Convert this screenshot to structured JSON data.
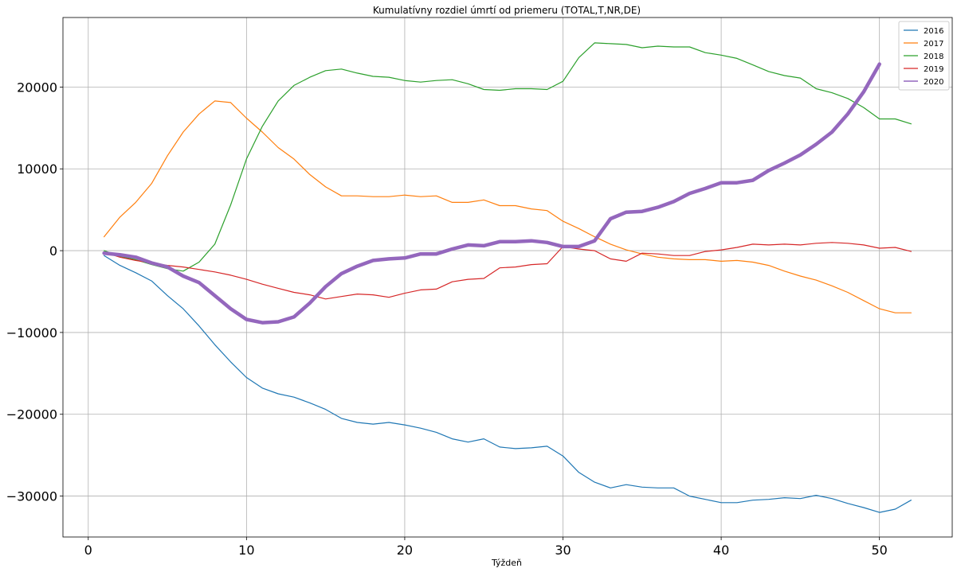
{
  "chart_data": {
    "type": "line",
    "title": "Kumulatívny rozdiel úmrtí od priemeru (TOTAL,T,NR,DE)",
    "xlabel": "Týždeň",
    "ylabel": "",
    "xlim": [
      -1.6,
      54.6
    ],
    "ylim": [
      -35000,
      28500
    ],
    "xticks": [
      0,
      10,
      20,
      30,
      40,
      50
    ],
    "yticks": [
      -30000,
      -20000,
      -10000,
      0,
      10000,
      20000
    ],
    "xtick_labels": [
      "0",
      "10",
      "20",
      "30",
      "40",
      "50"
    ],
    "ytick_labels": [
      "−30000",
      "−20000",
      "−10000",
      "0",
      "10000",
      "20000"
    ],
    "grid": true,
    "legend_position": "top-right",
    "series": [
      {
        "name": "2016",
        "color": "#1f77b4",
        "width": 1.2,
        "x": [
          1,
          2,
          3,
          4,
          5,
          6,
          7,
          8,
          9,
          10,
          11,
          12,
          13,
          14,
          15,
          16,
          17,
          18,
          19,
          20,
          21,
          22,
          23,
          24,
          25,
          26,
          27,
          28,
          29,
          30,
          31,
          32,
          33,
          34,
          35,
          36,
          37,
          38,
          39,
          40,
          41,
          42,
          43,
          44,
          45,
          46,
          47,
          48,
          49,
          50,
          51,
          52
        ],
        "y": [
          -600,
          -1800,
          -2700,
          -3700,
          -5500,
          -7100,
          -9200,
          -11500,
          -13600,
          -15500,
          -16800,
          -17500,
          -17900,
          -18600,
          -19400,
          -20500,
          -21000,
          -21200,
          -21000,
          -21300,
          -21700,
          -22200,
          -23000,
          -23400,
          -23000,
          -24000,
          -24200,
          -24100,
          -23900,
          -25100,
          -27100,
          -28300,
          -29000,
          -28600,
          -28900,
          -29000,
          -29000,
          -30000,
          -30400,
          -30800,
          -30800,
          -30500,
          -30400,
          -30200,
          -30300,
          -29900,
          -30300,
          -30900,
          -31400,
          -32000,
          -31600,
          -30500
        ]
      },
      {
        "name": "2017",
        "color": "#ff7f0e",
        "width": 1.2,
        "x": [
          1,
          2,
          3,
          4,
          5,
          6,
          7,
          8,
          9,
          10,
          11,
          12,
          13,
          14,
          15,
          16,
          17,
          18,
          19,
          20,
          21,
          22,
          23,
          24,
          25,
          26,
          27,
          28,
          29,
          30,
          31,
          32,
          33,
          34,
          35,
          36,
          37,
          38,
          39,
          40,
          41,
          42,
          43,
          44,
          45,
          46,
          47,
          48,
          49,
          50,
          51,
          52
        ],
        "y": [
          1700,
          4100,
          5900,
          8200,
          11600,
          14500,
          16700,
          18300,
          18100,
          16200,
          14500,
          12600,
          11200,
          9300,
          7800,
          6700,
          6700,
          6600,
          6600,
          6800,
          6600,
          6700,
          5900,
          5900,
          6200,
          5500,
          5500,
          5100,
          4900,
          3600,
          2700,
          1700,
          800,
          100,
          -400,
          -800,
          -1000,
          -1100,
          -1100,
          -1300,
          -1200,
          -1400,
          -1800,
          -2500,
          -3100,
          -3600,
          -4300,
          -5100,
          -6100,
          -7100,
          -7600,
          -7600
        ]
      },
      {
        "name": "2018",
        "color": "#2ca02c",
        "width": 1.2,
        "x": [
          1,
          2,
          3,
          4,
          5,
          6,
          7,
          8,
          9,
          10,
          11,
          12,
          13,
          14,
          15,
          16,
          17,
          18,
          19,
          20,
          21,
          22,
          23,
          24,
          25,
          26,
          27,
          28,
          29,
          30,
          31,
          32,
          33,
          34,
          35,
          36,
          37,
          38,
          39,
          40,
          41,
          42,
          43,
          44,
          45,
          46,
          47,
          48,
          49,
          50,
          51,
          52
        ],
        "y": [
          0,
          -700,
          -1100,
          -1700,
          -2200,
          -2500,
          -1400,
          800,
          5600,
          11200,
          15200,
          18300,
          20200,
          21200,
          22000,
          22200,
          21700,
          21300,
          21200,
          20800,
          20600,
          20800,
          20900,
          20400,
          19700,
          19600,
          19800,
          19800,
          19700,
          20700,
          23600,
          25400,
          25300,
          25200,
          24800,
          25000,
          24900,
          24900,
          24200,
          23900,
          23500,
          22700,
          21900,
          21400,
          21100,
          19800,
          19300,
          18600,
          17500,
          16100,
          16100,
          15500
        ]
      },
      {
        "name": "2019",
        "color": "#d62728",
        "width": 1.2,
        "x": [
          1,
          2,
          3,
          4,
          5,
          6,
          7,
          8,
          9,
          10,
          11,
          12,
          13,
          14,
          15,
          16,
          17,
          18,
          19,
          20,
          21,
          22,
          23,
          24,
          25,
          26,
          27,
          28,
          29,
          30,
          31,
          32,
          33,
          34,
          35,
          36,
          37,
          38,
          39,
          40,
          41,
          42,
          43,
          44,
          45,
          46,
          47,
          48,
          49,
          50,
          51,
          52
        ],
        "y": [
          -200,
          -800,
          -1200,
          -1500,
          -1800,
          -2000,
          -2300,
          -2600,
          -3000,
          -3500,
          -4100,
          -4600,
          -5100,
          -5400,
          -5900,
          -5600,
          -5300,
          -5400,
          -5700,
          -5200,
          -4800,
          -4700,
          -3800,
          -3500,
          -3400,
          -2100,
          -2000,
          -1700,
          -1600,
          500,
          200,
          0,
          -1000,
          -1300,
          -300,
          -400,
          -600,
          -600,
          -100,
          100,
          400,
          800,
          700,
          800,
          700,
          900,
          1000,
          900,
          700,
          300,
          400,
          -100
        ]
      },
      {
        "name": "2020",
        "color": "#9467bd",
        "width": 4.5,
        "x": [
          1,
          2,
          3,
          4,
          5,
          6,
          7,
          8,
          9,
          10,
          11,
          12,
          13,
          14,
          15,
          16,
          17,
          18,
          19,
          20,
          21,
          22,
          23,
          24,
          25,
          26,
          27,
          28,
          29,
          30,
          31,
          32,
          33,
          34,
          35,
          36,
          37,
          38,
          39,
          40,
          41,
          42,
          43,
          44,
          45,
          46,
          47,
          48,
          49,
          50
        ],
        "y": [
          -300,
          -500,
          -800,
          -1500,
          -2000,
          -3100,
          -3900,
          -5500,
          -7100,
          -8400,
          -8800,
          -8700,
          -8100,
          -6400,
          -4400,
          -2800,
          -1900,
          -1200,
          -1000,
          -900,
          -400,
          -400,
          200,
          700,
          600,
          1100,
          1100,
          1200,
          1000,
          500,
          500,
          1200,
          3900,
          4700,
          4800,
          5300,
          6000,
          7000,
          7600,
          8300,
          8300,
          8600,
          9800,
          10700,
          11700,
          13000,
          14500,
          16700,
          19400,
          22800
        ]
      }
    ]
  }
}
